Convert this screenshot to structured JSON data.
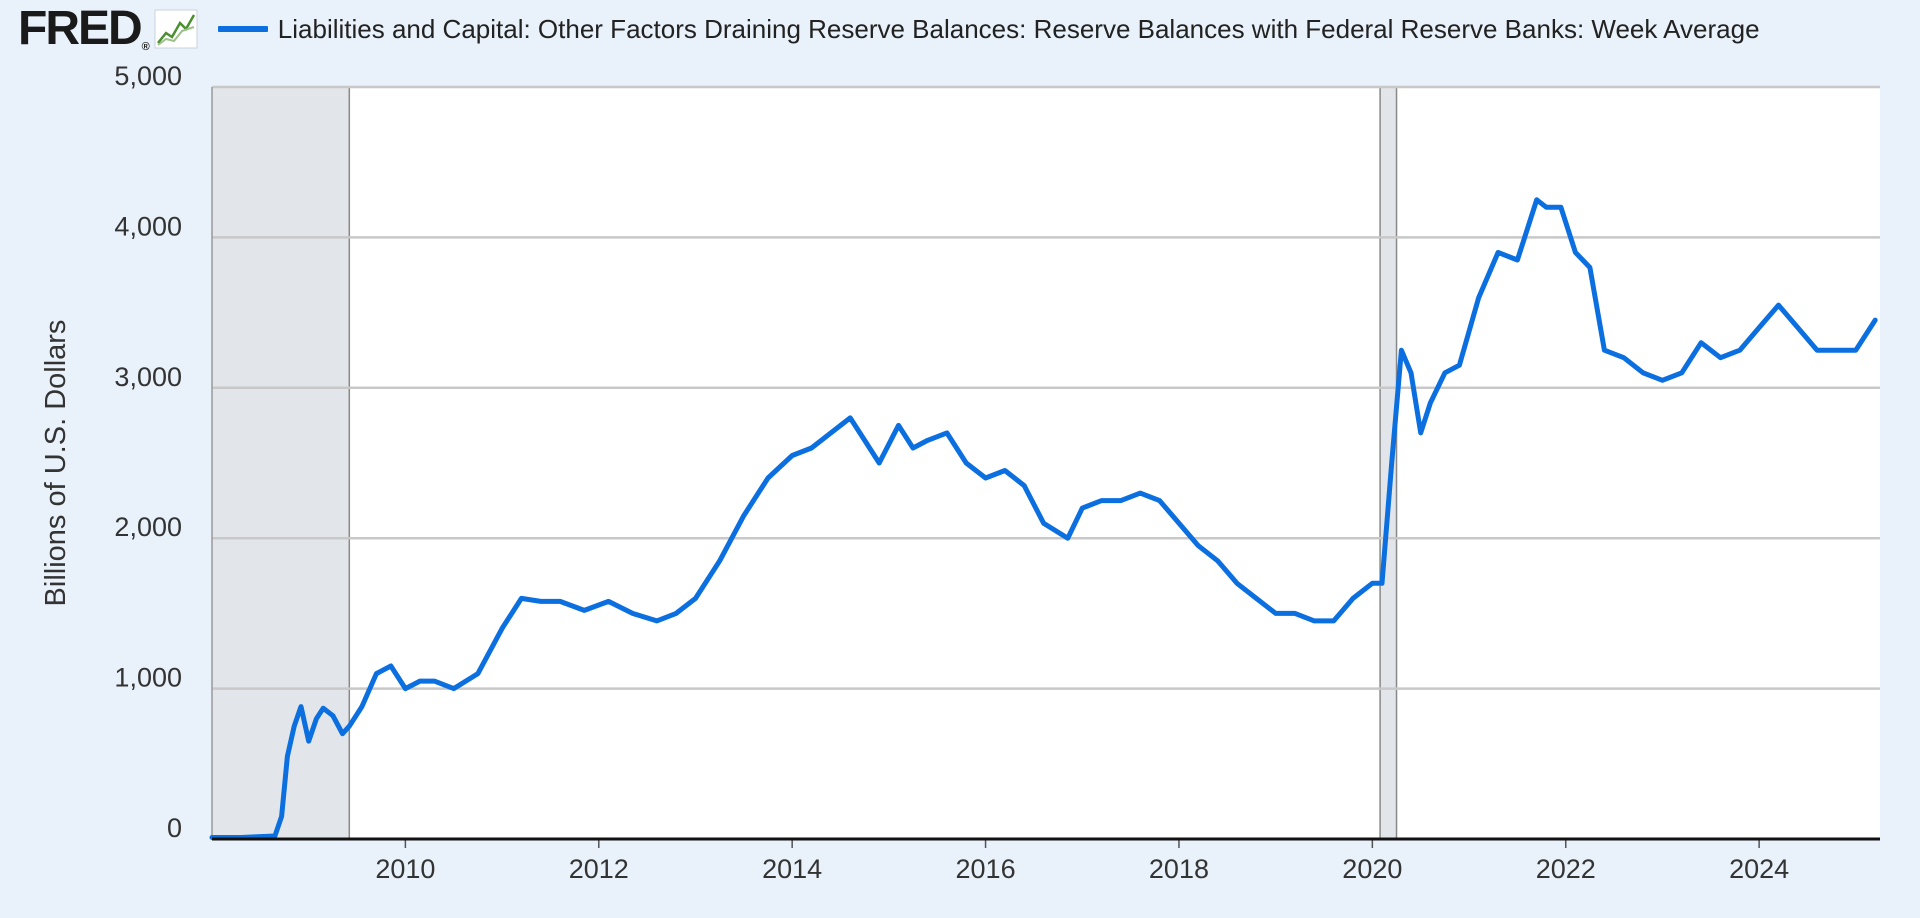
{
  "header": {
    "logo_text": "FRED",
    "logo_mark": "®",
    "logo_icon": "fred-chart-icon",
    "legend_label": "Liabilities and Capital: Other Factors Draining Reserve Balances: Reserve Balances with Federal Reserve Banks: Week Average"
  },
  "colors": {
    "line": "#0b6fe0",
    "background": "#e9f1fa",
    "plot": "#ffffff",
    "grid": "#c8c8c8",
    "recession": "#e2e6ea"
  },
  "chart_data": {
    "type": "line",
    "title": "",
    "xlabel": "",
    "ylabel": "Billions of U.S. Dollars",
    "xlim": [
      2008.0,
      2025.25
    ],
    "ylim": [
      0,
      5000
    ],
    "y_ticks": [
      0,
      1000,
      2000,
      3000,
      4000,
      5000
    ],
    "y_tick_labels": [
      "0",
      "1,000",
      "2,000",
      "3,000",
      "4,000",
      "5,000"
    ],
    "x_ticks": [
      2010,
      2012,
      2014,
      2016,
      2018,
      2020,
      2022,
      2024
    ],
    "x_tick_labels": [
      "2010",
      "2012",
      "2014",
      "2016",
      "2018",
      "2020",
      "2022",
      "2024"
    ],
    "grid": true,
    "recessions": [
      [
        2008.0,
        2009.42
      ],
      [
        2020.08,
        2020.25
      ]
    ],
    "series": [
      {
        "name": "Liabilities and Capital: Other Factors Draining Reserve Balances: Reserve Balances with Federal Reserve Banks: Week Average",
        "x": [
          2008.0,
          2008.3,
          2008.65,
          2008.72,
          2008.78,
          2008.85,
          2008.92,
          2009.0,
          2009.08,
          2009.15,
          2009.25,
          2009.35,
          2009.42,
          2009.55,
          2009.7,
          2009.85,
          2010.0,
          2010.15,
          2010.3,
          2010.5,
          2010.75,
          2011.0,
          2011.2,
          2011.4,
          2011.6,
          2011.85,
          2012.1,
          2012.35,
          2012.6,
          2012.8,
          2013.0,
          2013.25,
          2013.5,
          2013.75,
          2014.0,
          2014.2,
          2014.4,
          2014.6,
          2014.75,
          2014.9,
          2015.1,
          2015.25,
          2015.4,
          2015.6,
          2015.8,
          2016.0,
          2016.2,
          2016.4,
          2016.6,
          2016.85,
          2017.0,
          2017.2,
          2017.4,
          2017.6,
          2017.8,
          2018.0,
          2018.2,
          2018.4,
          2018.6,
          2018.8,
          2019.0,
          2019.2,
          2019.4,
          2019.6,
          2019.8,
          2020.0,
          2020.1,
          2020.2,
          2020.3,
          2020.4,
          2020.5,
          2020.6,
          2020.75,
          2020.9,
          2021.1,
          2021.3,
          2021.5,
          2021.7,
          2021.8,
          2021.95,
          2022.1,
          2022.25,
          2022.4,
          2022.6,
          2022.8,
          2023.0,
          2023.2,
          2023.4,
          2023.6,
          2023.8,
          2024.0,
          2024.2,
          2024.4,
          2024.6,
          2024.8,
          2025.0,
          2025.2
        ],
        "values": [
          10,
          10,
          20,
          150,
          550,
          750,
          880,
          650,
          800,
          870,
          820,
          700,
          750,
          880,
          1100,
          1150,
          1000,
          1050,
          1050,
          1000,
          1100,
          1400,
          1600,
          1580,
          1580,
          1520,
          1580,
          1500,
          1450,
          1500,
          1600,
          1850,
          2150,
          2400,
          2550,
          2600,
          2700,
          2800,
          2650,
          2500,
          2750,
          2600,
          2650,
          2700,
          2500,
          2400,
          2450,
          2350,
          2100,
          2000,
          2200,
          2250,
          2250,
          2300,
          2250,
          2100,
          1950,
          1850,
          1700,
          1600,
          1500,
          1500,
          1450,
          1450,
          1600,
          1700,
          1700,
          2500,
          3250,
          3100,
          2700,
          2900,
          3100,
          3150,
          3600,
          3900,
          3850,
          4250,
          4200,
          4200,
          3900,
          3800,
          3250,
          3200,
          3100,
          3050,
          3100,
          3300,
          3200,
          3250,
          3400,
          3550,
          3400,
          3250,
          3250,
          3250,
          3450
        ]
      }
    ]
  }
}
